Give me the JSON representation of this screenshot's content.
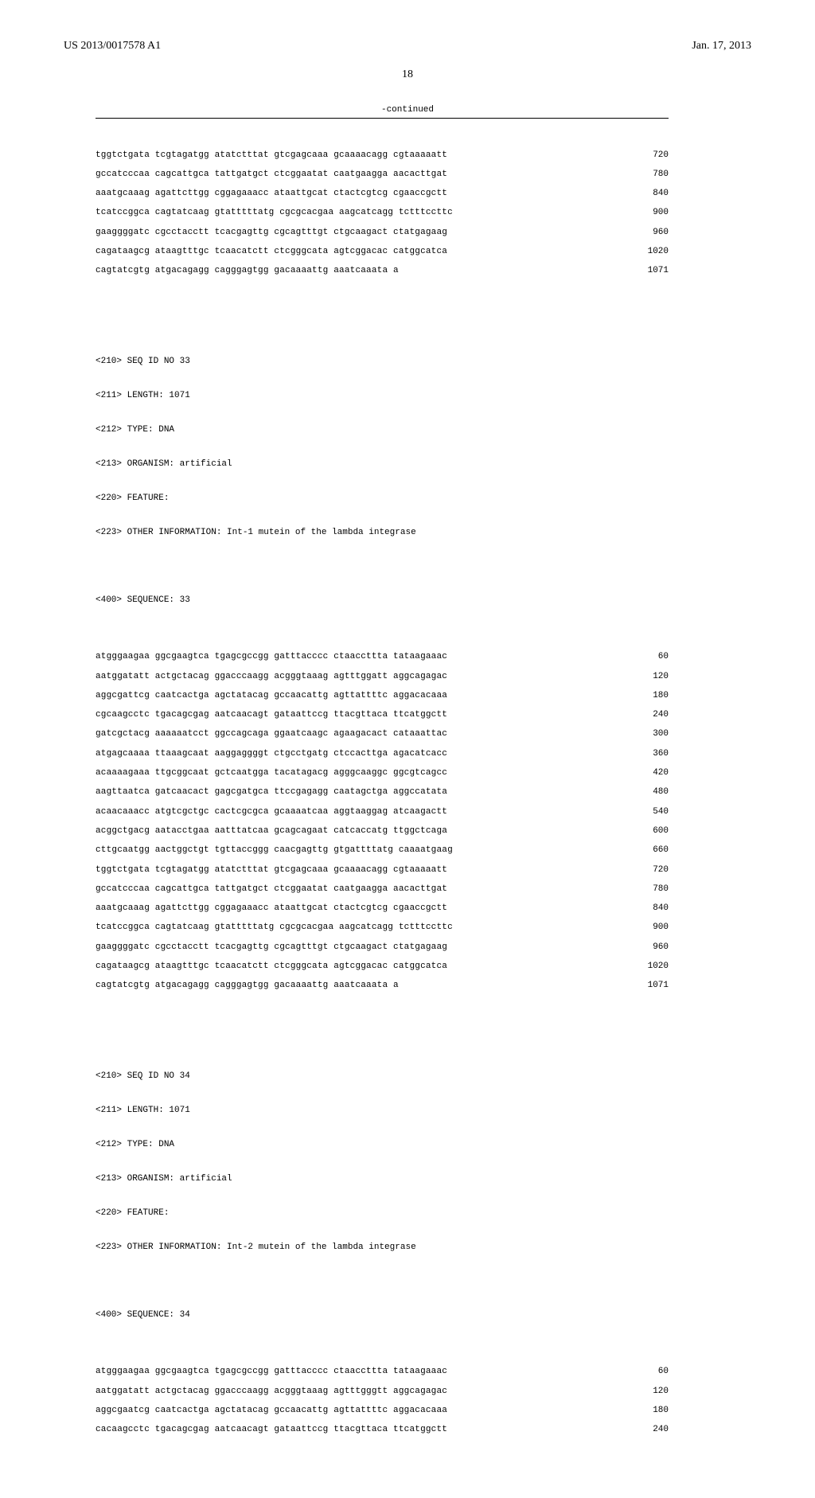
{
  "header": {
    "doc_number": "US 2013/0017578 A1",
    "date": "Jan. 17, 2013"
  },
  "page_number": "18",
  "continued_label": "-continued",
  "seq_block_a": {
    "rows": [
      {
        "seq": "tggtctgata tcgtagatgg atatctttat gtcgagcaaa gcaaaacagg cgtaaaaatt",
        "n": "720"
      },
      {
        "seq": "gccatcccaa cagcattgca tattgatgct ctcggaatat caatgaagga aacacttgat",
        "n": "780"
      },
      {
        "seq": "aaatgcaaag agattcttgg cggagaaacc ataattgcat ctactcgtcg cgaaccgctt",
        "n": "840"
      },
      {
        "seq": "tcatccggca cagtatcaag gtatttttatg cgcgcacgaa aagcatcagg tctttccttc",
        "n": "900"
      },
      {
        "seq": "gaaggggatc cgcctacctt tcacgagttg cgcagtttgt ctgcaagact ctatgagaag",
        "n": "960"
      },
      {
        "seq": "cagataagcg ataagtttgc tcaacatctt ctcgggcata agtcggacac catggcatca",
        "n": "1020"
      },
      {
        "seq": "cagtatcgtg atgacagagg cagggagtgg gacaaaattg aaatcaaata a",
        "n": "1071"
      }
    ]
  },
  "seq33_meta": {
    "seq_id": "<210> SEQ ID NO 33",
    "length": "<211> LENGTH: 1071",
    "type": "<212> TYPE: DNA",
    "organism": "<213> ORGANISM: artificial",
    "feature": "<220> FEATURE:",
    "other": "<223> OTHER INFORMATION: Int-1 mutein of the lambda integrase",
    "sequence_label": "<400> SEQUENCE: 33"
  },
  "seq33_rows": [
    {
      "seq": "atgggaagaa ggcgaagtca tgagcgccgg gatttacccc ctaaccttta tataagaaac",
      "n": "60"
    },
    {
      "seq": "aatggatatt actgctacag ggacccaagg acgggtaaag agtttggatt aggcagagac",
      "n": "120"
    },
    {
      "seq": "aggcgattcg caatcactga agctatacag gccaacattg agttattttc aggacacaaa",
      "n": "180"
    },
    {
      "seq": "cgcaagcctc tgacagcgag aatcaacagt gataattccg ttacgttaca ttcatggctt",
      "n": "240"
    },
    {
      "seq": "gatcgctacg aaaaaatcct ggccagcaga ggaatcaagc agaagacact cataaattac",
      "n": "300"
    },
    {
      "seq": "atgagcaaaa ttaaagcaat aaggaggggt ctgcctgatg ctccacttga agacatcacc",
      "n": "360"
    },
    {
      "seq": "acaaaagaaa ttgcggcaat gctcaatgga tacatagacg agggcaaggc ggcgtcagcc",
      "n": "420"
    },
    {
      "seq": "aagttaatca gatcaacact gagcgatgca ttccgagagg caatagctga aggccatata",
      "n": "480"
    },
    {
      "seq": "acaacaaacc atgtcgctgc cactcgcgca gcaaaatcaa aggtaaggag atcaagactt",
      "n": "540"
    },
    {
      "seq": "acggctgacg aatacctgaa aatttatcaa gcagcagaat catcaccatg ttggctcaga",
      "n": "600"
    },
    {
      "seq": "cttgcaatgg aactggctgt tgttaccggg caacgagttg gtgattttatg caaaatgaag",
      "n": "660"
    },
    {
      "seq": "tggtctgata tcgtagatgg atatctttat gtcgagcaaa gcaaaacagg cgtaaaaatt",
      "n": "720"
    },
    {
      "seq": "gccatcccaa cagcattgca tattgatgct ctcggaatat caatgaagga aacacttgat",
      "n": "780"
    },
    {
      "seq": "aaatgcaaag agattcttgg cggagaaacc ataattgcat ctactcgtcg cgaaccgctt",
      "n": "840"
    },
    {
      "seq": "tcatccggca cagtatcaag gtatttttatg cgcgcacgaa aagcatcagg tctttccttc",
      "n": "900"
    },
    {
      "seq": "gaaggggatc cgcctacctt tcacgagttg cgcagtttgt ctgcaagact ctatgagaag",
      "n": "960"
    },
    {
      "seq": "cagataagcg ataagtttgc tcaacatctt ctcgggcata agtcggacac catggcatca",
      "n": "1020"
    },
    {
      "seq": "cagtatcgtg atgacagagg cagggagtgg gacaaaattg aaatcaaata a",
      "n": "1071"
    }
  ],
  "seq34_meta": {
    "seq_id": "<210> SEQ ID NO 34",
    "length": "<211> LENGTH: 1071",
    "type": "<212> TYPE: DNA",
    "organism": "<213> ORGANISM: artificial",
    "feature": "<220> FEATURE:",
    "other": "<223> OTHER INFORMATION: Int-2 mutein of the lambda integrase",
    "sequence_label": "<400> SEQUENCE: 34"
  },
  "seq34_rows": [
    {
      "seq": "atgggaagaa ggcgaagtca tgagcgccgg gatttacccc ctaaccttta tataagaaac",
      "n": "60"
    },
    {
      "seq": "aatggatatt actgctacag ggacccaagg acgggtaaag agtttgggtt aggcagagac",
      "n": "120"
    },
    {
      "seq": "aggcgaatcg caatcactga agctatacag gccaacattg agttattttc aggacacaaa",
      "n": "180"
    },
    {
      "seq": "cacaagcctc tgacagcgag aatcaacagt gataattccg ttacgttaca ttcatggctt",
      "n": "240"
    }
  ]
}
